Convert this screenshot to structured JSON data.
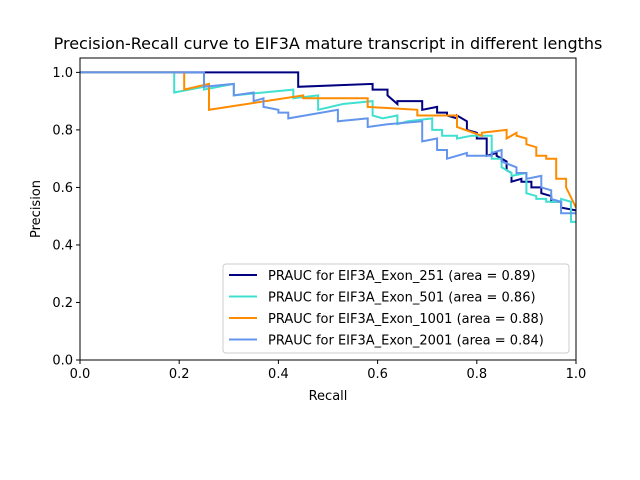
{
  "chart_data": {
    "type": "line",
    "title": "Precision-Recall curve to EIF3A mature transcript in different lengths",
    "xlabel": "Recall",
    "ylabel": "Precision",
    "xlim": [
      0.0,
      1.0
    ],
    "ylim": [
      0.0,
      1.05
    ],
    "x_ticks": [
      "0.0",
      "0.2",
      "0.4",
      "0.6",
      "0.8",
      "1.0"
    ],
    "y_ticks": [
      "0.0",
      "0.2",
      "0.4",
      "0.6",
      "0.8",
      "1.0"
    ],
    "grid": false,
    "legend_position": "lower-right",
    "series": [
      {
        "name": "PRAUC for EIF3A_Exon_251 (area = 0.89)",
        "color": "#000080",
        "x": [
          0.0,
          0.44,
          0.44,
          0.59,
          0.59,
          0.62,
          0.62,
          0.64,
          0.64,
          0.69,
          0.69,
          0.72,
          0.72,
          0.74,
          0.74,
          0.76,
          0.76,
          0.78,
          0.78,
          0.8,
          0.8,
          0.82,
          0.82,
          0.84,
          0.84,
          0.86,
          0.86,
          0.87,
          0.87,
          0.89,
          0.89,
          0.91,
          0.91,
          0.93,
          0.93,
          0.95,
          0.95,
          0.97,
          0.97,
          1.0
        ],
        "y": [
          1.0,
          1.0,
          0.95,
          0.96,
          0.94,
          0.94,
          0.92,
          0.89,
          0.9,
          0.9,
          0.87,
          0.88,
          0.86,
          0.86,
          0.85,
          0.84,
          0.85,
          0.83,
          0.8,
          0.79,
          0.77,
          0.77,
          0.71,
          0.72,
          0.71,
          0.69,
          0.66,
          0.65,
          0.62,
          0.63,
          0.62,
          0.62,
          0.6,
          0.6,
          0.58,
          0.57,
          0.55,
          0.55,
          0.53,
          0.52
        ]
      },
      {
        "name": "PRAUC for EIF3A_Exon_501 (area = 0.86)",
        "color": "#40E0D0",
        "x": [
          0.0,
          0.19,
          0.19,
          0.25,
          0.25,
          0.31,
          0.31,
          0.43,
          0.43,
          0.48,
          0.48,
          0.53,
          0.53,
          0.59,
          0.59,
          0.61,
          0.61,
          0.64,
          0.64,
          0.66,
          0.66,
          0.71,
          0.71,
          0.73,
          0.73,
          0.76,
          0.76,
          0.79,
          0.79,
          0.83,
          0.83,
          0.85,
          0.85,
          0.87,
          0.87,
          0.9,
          0.9,
          0.92,
          0.92,
          0.94,
          0.94,
          0.97,
          0.97,
          0.99,
          0.99,
          1.0
        ],
        "y": [
          1.0,
          1.0,
          0.93,
          0.95,
          0.94,
          0.96,
          0.92,
          0.94,
          0.91,
          0.92,
          0.87,
          0.89,
          0.89,
          0.9,
          0.85,
          0.84,
          0.84,
          0.85,
          0.82,
          0.83,
          0.83,
          0.84,
          0.8,
          0.8,
          0.78,
          0.78,
          0.77,
          0.78,
          0.78,
          0.78,
          0.7,
          0.7,
          0.67,
          0.65,
          0.64,
          0.65,
          0.58,
          0.57,
          0.56,
          0.56,
          0.55,
          0.55,
          0.56,
          0.55,
          0.48,
          0.48
        ]
      },
      {
        "name": "PRAUC for EIF3A_Exon_1001 (area = 0.88)",
        "color": "#FF8C00",
        "x": [
          0.0,
          0.21,
          0.21,
          0.26,
          0.26,
          0.45,
          0.45,
          0.58,
          0.58,
          0.68,
          0.68,
          0.76,
          0.76,
          0.81,
          0.81,
          0.86,
          0.86,
          0.88,
          0.88,
          0.9,
          0.9,
          0.92,
          0.92,
          0.94,
          0.94,
          0.96,
          0.96,
          0.98,
          0.98,
          1.0
        ],
        "y": [
          1.0,
          1.0,
          0.94,
          0.96,
          0.87,
          0.92,
          0.91,
          0.91,
          0.88,
          0.87,
          0.85,
          0.85,
          0.81,
          0.78,
          0.79,
          0.8,
          0.77,
          0.79,
          0.78,
          0.77,
          0.75,
          0.74,
          0.71,
          0.71,
          0.7,
          0.7,
          0.63,
          0.63,
          0.6,
          0.53
        ]
      },
      {
        "name": "PRAUC for EIF3A_Exon_2001 (area = 0.84)",
        "color": "#6495ED",
        "x": [
          0.0,
          0.25,
          0.25,
          0.31,
          0.31,
          0.35,
          0.35,
          0.37,
          0.37,
          0.4,
          0.4,
          0.42,
          0.42,
          0.52,
          0.52,
          0.58,
          0.58,
          0.62,
          0.62,
          0.69,
          0.69,
          0.72,
          0.72,
          0.74,
          0.74,
          0.78,
          0.78,
          0.83,
          0.83,
          0.85,
          0.85,
          0.88,
          0.88,
          0.9,
          0.9,
          0.93,
          0.93,
          0.95,
          0.95,
          0.97,
          0.97,
          1.0
        ],
        "y": [
          1.0,
          1.0,
          0.95,
          0.96,
          0.92,
          0.93,
          0.9,
          0.91,
          0.88,
          0.87,
          0.86,
          0.86,
          0.84,
          0.87,
          0.83,
          0.84,
          0.81,
          0.82,
          0.82,
          0.83,
          0.76,
          0.77,
          0.73,
          0.73,
          0.7,
          0.72,
          0.71,
          0.71,
          0.72,
          0.73,
          0.69,
          0.67,
          0.65,
          0.65,
          0.63,
          0.64,
          0.6,
          0.59,
          0.56,
          0.55,
          0.51,
          0.51
        ]
      }
    ]
  }
}
